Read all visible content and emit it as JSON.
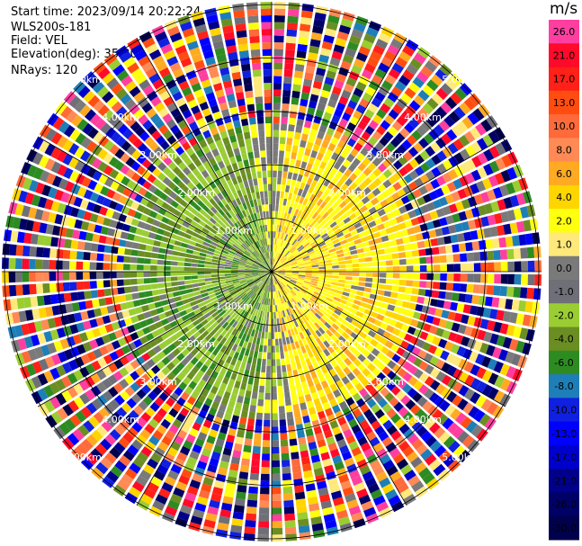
{
  "header": {
    "start_time": "Start time: 2023/09/14 20:22:24",
    "instrument": "WLS200s-181",
    "field": "Field: VEL",
    "elevation": "Elevation(deg): 35.30",
    "nrays": "NRays: 120"
  },
  "colorbar": {
    "unit": "m/s",
    "levels": [
      {
        "label": "26.0",
        "color": "#ff3ea0"
      },
      {
        "label": "21.0",
        "color": "#ff0a2a"
      },
      {
        "label": "17.0",
        "color": "#ff2018"
      },
      {
        "label": "13.0",
        "color": "#ff4d12"
      },
      {
        "label": "10.0",
        "color": "#ff6a3a"
      },
      {
        "label": "8.0",
        "color": "#ff8a55"
      },
      {
        "label": "6.0",
        "color": "#ffaa22"
      },
      {
        "label": "4.0",
        "color": "#ffd500"
      },
      {
        "label": "2.0",
        "color": "#ffff10"
      },
      {
        "label": "1.0",
        "color": "#ffe97a"
      },
      {
        "label": "0.0",
        "color": "#7a7a7a"
      },
      {
        "label": "-1.0",
        "color": "#6f6f78"
      },
      {
        "label": "-2.0",
        "color": "#9acd32"
      },
      {
        "label": "-4.0",
        "color": "#6b8e23"
      },
      {
        "label": "-6.0",
        "color": "#2e8b22"
      },
      {
        "label": "-8.0",
        "color": "#1e7eb8"
      },
      {
        "label": "-10.0",
        "color": "#1020e0"
      },
      {
        "label": "-13.0",
        "color": "#0000ff"
      },
      {
        "label": "-17.0",
        "color": "#0000cc"
      },
      {
        "label": "-21.0",
        "color": "#00008b"
      },
      {
        "label": "-26.0",
        "color": "#000066"
      },
      {
        "label": "-30.0",
        "color": "#00004d"
      }
    ]
  },
  "chart_data": {
    "type": "heatmap",
    "title": "",
    "field": "VEL",
    "nrays": 120,
    "range_rings_km": [
      1.0,
      2.0,
      3.0,
      4.0,
      5.0
    ],
    "ring_labels": [
      "1.00km",
      "2.00km",
      "3.00km",
      "4.00km",
      "5.00km"
    ],
    "cluster_note_values": {
      "east_sector_velocity_range": [
        1.0,
        4.0
      ],
      "west_sector_velocity_range": [
        -4.0,
        -1.0
      ],
      "outer_ring_velocity_range": [
        -30.0,
        26.0
      ]
    }
  }
}
